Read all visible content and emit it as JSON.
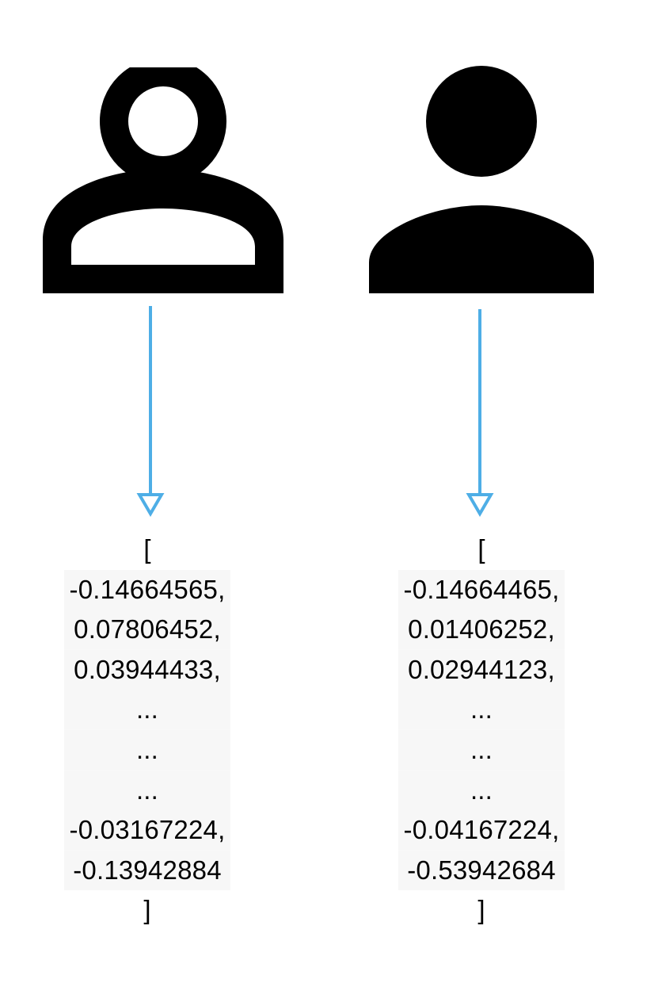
{
  "colors": {
    "arrow": "#4eaee6",
    "icon": "#000000",
    "highlight": "#f7f7f7"
  },
  "icons": {
    "left": "person-outline-icon",
    "right": "person-filled-icon"
  },
  "left_vector": {
    "open": "[",
    "values": [
      "-0.14664565,",
      "0.07806452,",
      "0.03944433,"
    ],
    "ellipses": [
      "...",
      "...",
      "..."
    ],
    "tail_values": [
      "-0.03167224,",
      "-0.13942884"
    ],
    "close": "]"
  },
  "right_vector": {
    "open": "[",
    "values": [
      "-0.14664465,",
      "0.01406252,",
      "0.02944123,"
    ],
    "ellipses": [
      "...",
      "...",
      "..."
    ],
    "tail_values": [
      "-0.04167224,",
      "-0.53942684"
    ],
    "close": "]"
  }
}
